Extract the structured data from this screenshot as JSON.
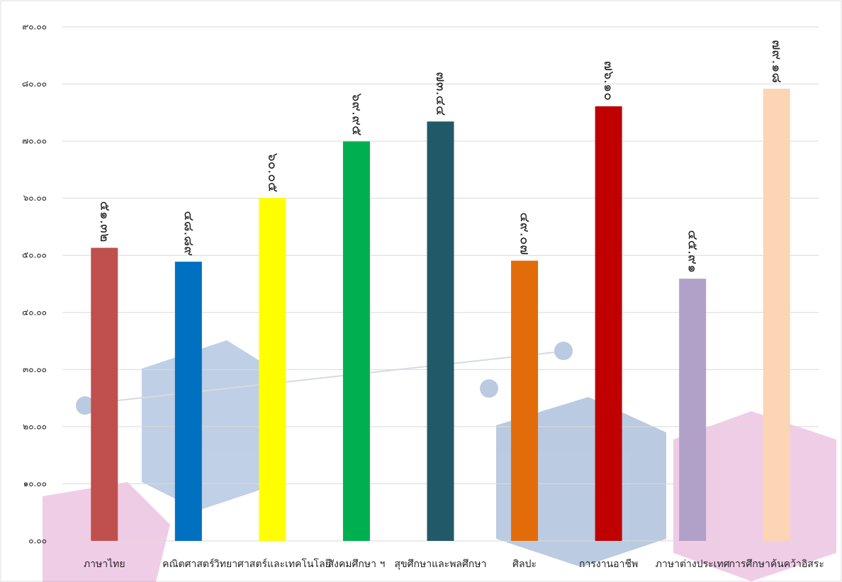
{
  "chart_data": {
    "type": "bar",
    "categories": [
      "ภาษาไทย",
      "คณิตศาสตร์",
      "วิทยาศาสตร์และเทคโนโลยี",
      "สังคมศึกษา ฯ",
      "สุขศึกษาและพลศึกษา",
      "ศิลปะ",
      "การงานอาชีพ",
      "ภาษาต่างประเทศ",
      "การศึกษาค้นคว้าอิสระ"
    ],
    "values": [
      51.32,
      48.89,
      60.05,
      69.95,
      73.44,
      49.07,
      76.1,
      45.91,
      79.18
    ],
    "value_labels": [
      "๕๑.๓๒",
      "๔๘.๘๙",
      "๖๐.๐๕",
      "๖๙.๙๕",
      "๗๓.๔๔",
      "๔๙.๐๗",
      "๗๖.๑๐",
      "๔๕.๙๑",
      "๗๙.๑๘"
    ],
    "colors": [
      "#c0504d",
      "#0070c0",
      "#ffff00",
      "#00b050",
      "#215968",
      "#e36c0a",
      "#c00000",
      "#b1a0c7",
      "#fcd5b4"
    ],
    "ylim": [
      0,
      90
    ],
    "yticks": [
      {
        "value": 0,
        "label": "๐.๐๐"
      },
      {
        "value": 10,
        "label": "๑๐.๐๐"
      },
      {
        "value": 20,
        "label": "๒๐.๐๐"
      },
      {
        "value": 30,
        "label": "๓๐.๐๐"
      },
      {
        "value": 40,
        "label": "๔๐.๐๐"
      },
      {
        "value": 50,
        "label": "๕๐.๐๐"
      },
      {
        "value": 60,
        "label": "๖๐.๐๐"
      },
      {
        "value": 70,
        "label": "๗๐.๐๐"
      },
      {
        "value": 80,
        "label": "๘๐.๐๐"
      },
      {
        "value": 90,
        "label": "๙๐.๐๐"
      }
    ],
    "grid": true
  }
}
